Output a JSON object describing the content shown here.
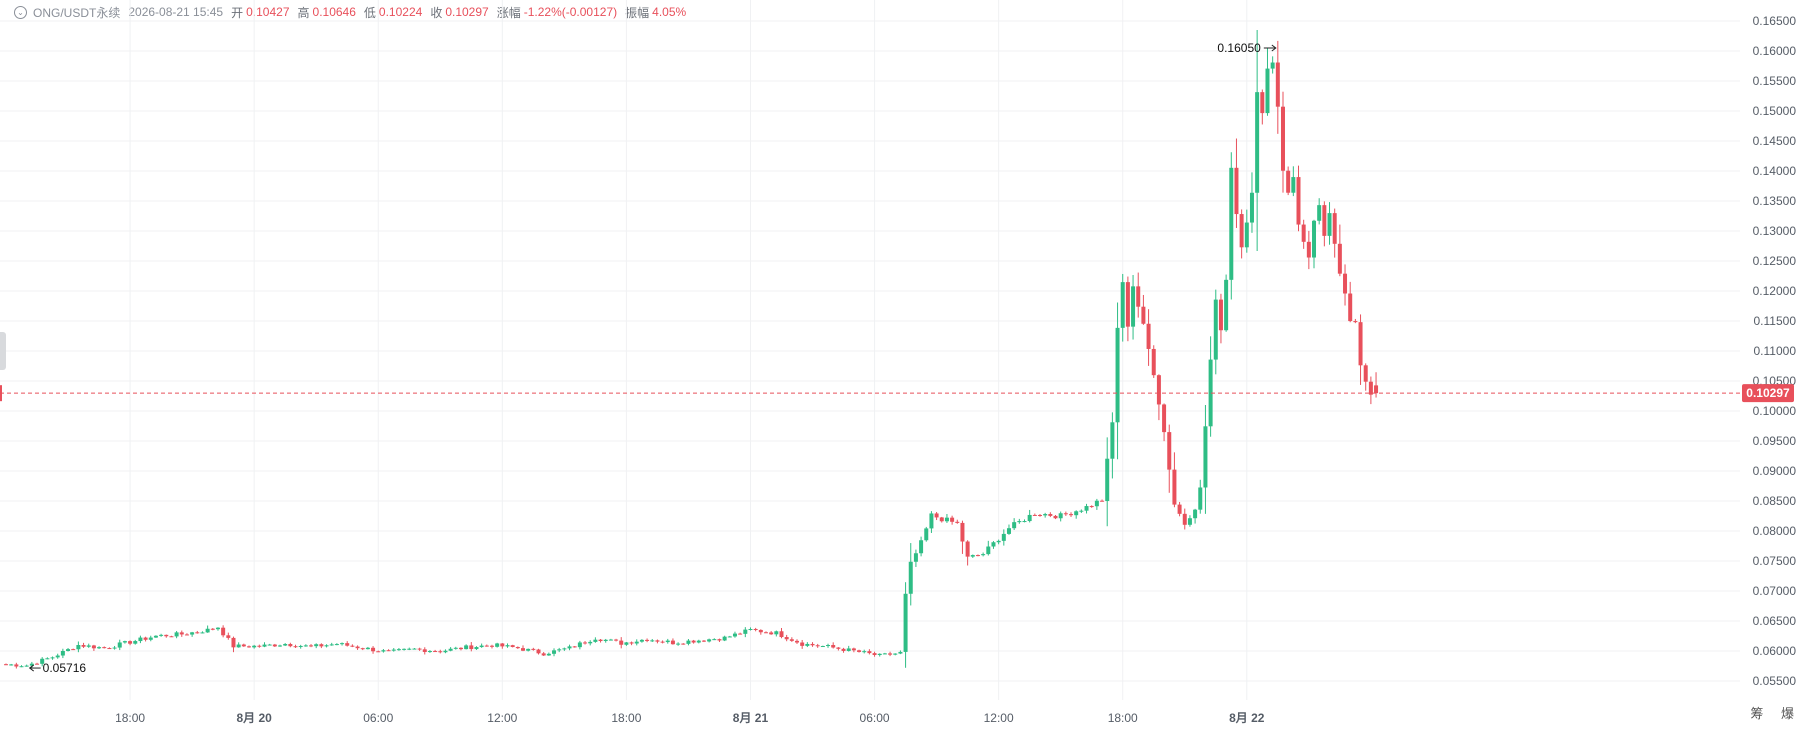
{
  "header": {
    "symbol": "ONG/USDT永续",
    "datetime": "2026-08-21 15:45",
    "open_label": "开",
    "open": "0.10427",
    "high_label": "高",
    "high": "0.10646",
    "low_label": "低",
    "low": "0.10224",
    "close_label": "收",
    "close": "0.10297",
    "change_label": "涨幅",
    "change": "-1.22%(-0.00127)",
    "amplitude_label": "振幅",
    "amplitude": "4.05%"
  },
  "colors": {
    "up": "#2ebd85",
    "down": "#e8505b",
    "grid": "#f0f1f3",
    "axis_text": "#555c66"
  },
  "chart_data": {
    "type": "candlestick",
    "interval_minutes": 15,
    "start": "2026-08-19 12:00",
    "ylim": [
      0.05,
      0.165
    ],
    "yticks": [
      "0.05500",
      "0.06000",
      "0.06500",
      "0.07000",
      "0.07500",
      "0.08000",
      "0.08500",
      "0.09000",
      "0.09500",
      "0.10000",
      "0.10500",
      "0.11000",
      "0.11500",
      "0.12000",
      "0.12500",
      "0.13000",
      "0.13500",
      "0.14000",
      "0.14500",
      "0.15000",
      "0.15500",
      "0.16000",
      "0.16500"
    ],
    "xticks": [
      {
        "time": "2026-08-19 18:00",
        "label": "18:00",
        "bold": false
      },
      {
        "time": "2026-08-20 00:00",
        "label": "8月 20",
        "bold": true
      },
      {
        "time": "2026-08-20 06:00",
        "label": "06:00",
        "bold": false
      },
      {
        "time": "2026-08-20 12:00",
        "label": "12:00",
        "bold": false
      },
      {
        "time": "2026-08-20 18:00",
        "label": "18:00",
        "bold": false
      },
      {
        "time": "2026-08-21 00:00",
        "label": "8月 21",
        "bold": true
      },
      {
        "time": "2026-08-21 06:00",
        "label": "06:00",
        "bold": false
      },
      {
        "time": "2026-08-21 12:00",
        "label": "12:00",
        "bold": false
      },
      {
        "time": "2026-08-21 18:00",
        "label": "18:00",
        "bold": false
      },
      {
        "time": "2026-08-22 00:00",
        "label": "8月 22",
        "bold": true
      }
    ],
    "last_price": "0.10297",
    "max_label": "0.16050",
    "min_label": "0.05716",
    "bottom_right_labels": [
      "筹",
      "爆"
    ],
    "anchors": [
      [
        0,
        0.0578
      ],
      [
        5,
        0.0576
      ],
      [
        10,
        0.059
      ],
      [
        15,
        0.061
      ],
      [
        20,
        0.0605
      ],
      [
        25,
        0.0615
      ],
      [
        30,
        0.0625
      ],
      [
        35,
        0.0628
      ],
      [
        40,
        0.0635
      ],
      [
        42,
        0.064
      ],
      [
        45,
        0.0608
      ],
      [
        50,
        0.0608
      ],
      [
        55,
        0.0612
      ],
      [
        60,
        0.0607
      ],
      [
        65,
        0.0612
      ],
      [
        70,
        0.0605
      ],
      [
        75,
        0.0598
      ],
      [
        80,
        0.0603
      ],
      [
        85,
        0.06
      ],
      [
        90,
        0.0606
      ],
      [
        95,
        0.061
      ],
      [
        100,
        0.0605
      ],
      [
        105,
        0.0596
      ],
      [
        110,
        0.0605
      ],
      [
        115,
        0.0622
      ],
      [
        120,
        0.0613
      ],
      [
        125,
        0.062
      ],
      [
        130,
        0.0614
      ],
      [
        135,
        0.0618
      ],
      [
        140,
        0.0622
      ],
      [
        145,
        0.0635
      ],
      [
        150,
        0.063
      ],
      [
        155,
        0.0612
      ],
      [
        160,
        0.0607
      ],
      [
        165,
        0.06
      ],
      [
        170,
        0.0592
      ],
      [
        174,
        0.0597
      ],
      [
        175,
        0.0693
      ],
      [
        176,
        0.0745
      ],
      [
        178,
        0.078
      ],
      [
        180,
        0.0826
      ],
      [
        185,
        0.0812
      ],
      [
        187,
        0.0755
      ],
      [
        190,
        0.0762
      ],
      [
        195,
        0.0805
      ],
      [
        200,
        0.083
      ],
      [
        205,
        0.0825
      ],
      [
        210,
        0.084
      ],
      [
        213,
        0.0852
      ],
      [
        215,
        0.098
      ],
      [
        216,
        0.114
      ],
      [
        217,
        0.121
      ],
      [
        218,
        0.1145
      ],
      [
        219,
        0.121
      ],
      [
        221,
        0.114
      ],
      [
        223,
        0.1065
      ],
      [
        225,
        0.0965
      ],
      [
        227,
        0.0845
      ],
      [
        229,
        0.0812
      ],
      [
        231,
        0.084
      ],
      [
        232,
        0.087
      ],
      [
        233,
        0.0975
      ],
      [
        234,
        0.1085
      ],
      [
        235,
        0.118
      ],
      [
        236,
        0.114
      ],
      [
        237,
        0.122
      ],
      [
        238,
        0.141
      ],
      [
        239,
        0.133
      ],
      [
        240,
        0.128
      ],
      [
        242,
        0.136
      ],
      [
        243,
        0.1525
      ],
      [
        244,
        0.1505
      ],
      [
        245,
        0.157
      ],
      [
        246,
        0.1585
      ],
      [
        247,
        0.151
      ],
      [
        248,
        0.1405
      ],
      [
        249,
        0.136
      ],
      [
        250,
        0.139
      ],
      [
        251,
        0.1315
      ],
      [
        252,
        0.128
      ],
      [
        253,
        0.125
      ],
      [
        254,
        0.131
      ],
      [
        255,
        0.1345
      ],
      [
        256,
        0.1285
      ],
      [
        257,
        0.1325
      ],
      [
        258,
        0.128
      ],
      [
        259,
        0.1235
      ],
      [
        260,
        0.12
      ],
      [
        261,
        0.1155
      ],
      [
        262,
        0.1145
      ],
      [
        263,
        0.1075
      ],
      [
        264,
        0.1043
      ],
      [
        265,
        0.103
      ]
    ]
  }
}
